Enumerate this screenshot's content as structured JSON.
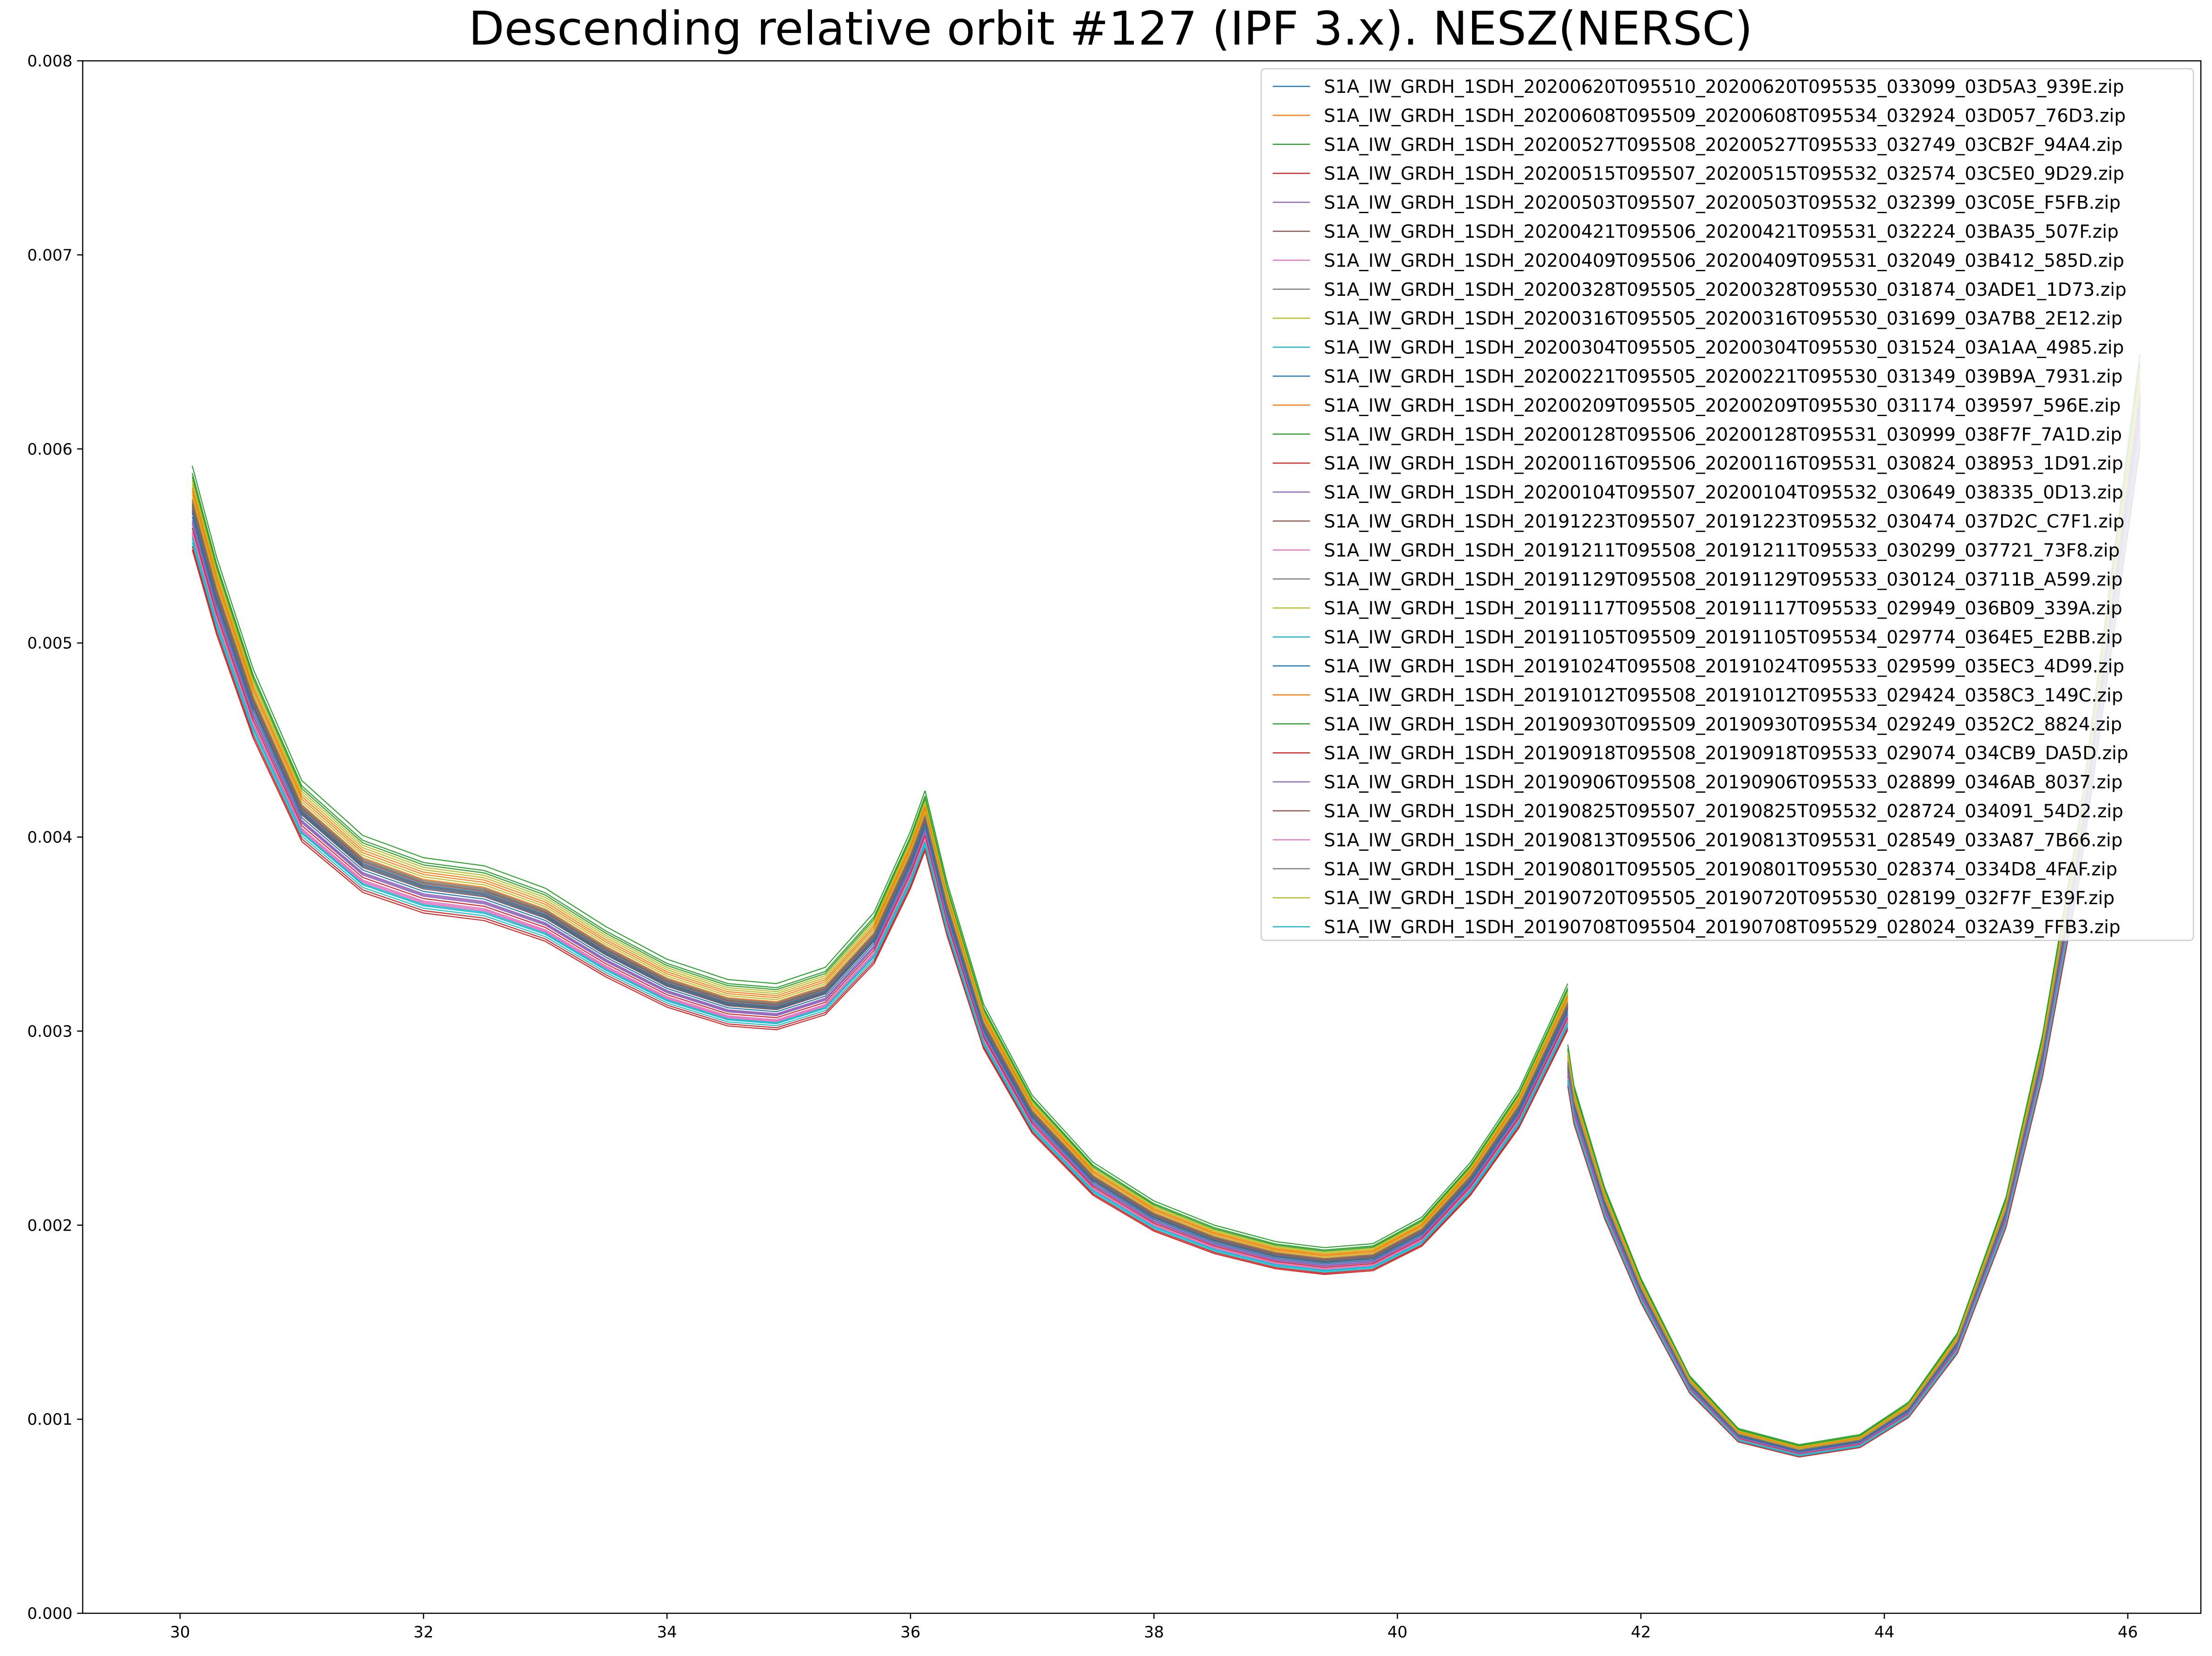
{
  "chart_data": {
    "type": "line",
    "title": "Descending relative orbit #127 (IPF 3.x). NESZ(NERSC)",
    "xlabel": "",
    "ylabel": "",
    "xlim": [
      29.2,
      46.6
    ],
    "ylim": [
      0,
      0.008
    ],
    "xticks": [
      30,
      32,
      34,
      36,
      38,
      40,
      42,
      44,
      46
    ],
    "yticks": [
      0,
      0.001,
      0.002,
      0.003,
      0.004,
      0.005,
      0.006,
      0.007,
      0.008
    ],
    "ytick_labels": [
      "0.000",
      "0.001",
      "0.002",
      "0.003",
      "0.004",
      "0.005",
      "0.006",
      "0.007",
      "0.008"
    ],
    "grid": false,
    "legend_position": "upper right",
    "base_curve": {
      "segments": [
        {
          "x": [
            30.1,
            30.3,
            30.6,
            31.0,
            31.5,
            32.0,
            32.5,
            33.0,
            33.5,
            34.0,
            34.5,
            34.9,
            35.3,
            35.7,
            36.0,
            36.12
          ],
          "y": [
            0.00565,
            0.0052,
            0.00465,
            0.0041,
            0.00383,
            0.00372,
            0.00368,
            0.00357,
            0.00338,
            0.00322,
            0.00312,
            0.0031,
            0.00318,
            0.00345,
            0.00385,
            0.00405
          ]
        },
        {
          "x": [
            36.12,
            36.3,
            36.6,
            37.0,
            37.5,
            38.0,
            38.5,
            39.0,
            39.4,
            39.8,
            40.2,
            40.6,
            41.0,
            41.4
          ],
          "y": [
            0.00405,
            0.0036,
            0.003,
            0.00255,
            0.00222,
            0.00203,
            0.00191,
            0.00183,
            0.0018,
            0.00182,
            0.00195,
            0.00222,
            0.00258,
            0.0031
          ]
        },
        {
          "x": [
            41.4,
            41.45,
            41.7,
            42.0,
            42.4,
            42.8,
            43.3,
            43.8,
            44.2,
            44.6,
            45.0,
            45.3,
            45.6,
            46.1
          ],
          "y": [
            0.0028,
            0.0026,
            0.0021,
            0.00165,
            0.00117,
            0.00091,
            0.00083,
            0.00088,
            0.00104,
            0.00138,
            0.00205,
            0.00285,
            0.0039,
            0.0062
          ]
        }
      ]
    },
    "series": [
      {
        "name": "S1A_IW_GRDH_1SDH_20200620T095510_20200620T095535_033099_03D5A3_939E.zip",
        "color": "#1f77b4",
        "offset": 2.5e-05
      },
      {
        "name": "S1A_IW_GRDH_1SDH_20200608T095509_20200608T095534_032924_03D057_76D3.zip",
        "color": "#ff7f0e",
        "offset": 7e-05
      },
      {
        "name": "S1A_IW_GRDH_1SDH_20200527T095508_20200527T095533_032749_03CB2F_94A4.zip",
        "color": "#2ca02c",
        "offset": 0.00014
      },
      {
        "name": "S1A_IW_GRDH_1SDH_20200515T095507_20200515T095532_032574_03C5E0_9D29.zip",
        "color": "#d62728",
        "offset": -8e-05
      },
      {
        "name": "S1A_IW_GRDH_1SDH_20200503T095507_20200503T095532_032399_03C05E_F5FB.zip",
        "color": "#9467bd",
        "offset": -2e-05
      },
      {
        "name": "S1A_IW_GRDH_1SDH_20200421T095506_20200421T095531_032224_03BA35_507F.zip",
        "color": "#8c564b",
        "offset": 1e-05
      },
      {
        "name": "S1A_IW_GRDH_1SDH_20200409T095506_20200409T095531_032049_03B412_585D.zip",
        "color": "#e377c2",
        "offset": -4e-05
      },
      {
        "name": "S1A_IW_GRDH_1SDH_20200328T095505_20200328T095530_031874_03ADE1_1D73.zip",
        "color": "#7f7f7f",
        "offset": 3e-05
      },
      {
        "name": "S1A_IW_GRDH_1SDH_20200316T095505_20200316T095530_031699_03A7B8_2E12.zip",
        "color": "#bcbd22",
        "offset": 9e-05
      },
      {
        "name": "S1A_IW_GRDH_1SDH_20200304T095505_20200304T095530_031524_03A1AA_4985.zip",
        "color": "#17becf",
        "offset": -6e-05
      },
      {
        "name": "S1A_IW_GRDH_1SDH_20200221T095505_20200221T095530_031349_039B9A_7931.zip",
        "color": "#1f77b4",
        "offset": 0.0
      },
      {
        "name": "S1A_IW_GRDH_1SDH_20200209T095505_20200209T095530_031174_039597_596E.zip",
        "color": "#ff7f0e",
        "offset": 5e-05
      },
      {
        "name": "S1A_IW_GRDH_1SDH_20200128T095506_20200128T095531_030999_038F7F_7A1D.zip",
        "color": "#2ca02c",
        "offset": 0.00011
      },
      {
        "name": "S1A_IW_GRDH_1SDH_20200116T095506_20200116T095531_030824_038953_1D91.zip",
        "color": "#d62728",
        "offset": -3e-05
      },
      {
        "name": "S1A_IW_GRDH_1SDH_20200104T095507_20200104T095532_030649_038335_0D13.zip",
        "color": "#9467bd",
        "offset": -1e-05
      },
      {
        "name": "S1A_IW_GRDH_1SDH_20191223T095507_20191223T095532_030474_037D2C_C7F1.zip",
        "color": "#8c564b",
        "offset": 2e-05
      },
      {
        "name": "S1A_IW_GRDH_1SDH_20191211T095508_20191211T095533_030299_037721_73F8.zip",
        "color": "#e377c2",
        "offset": -5e-05
      },
      {
        "name": "S1A_IW_GRDH_1SDH_20191129T095508_20191129T095533_030124_03711B_A599.zip",
        "color": "#7f7f7f",
        "offset": 4e-05
      },
      {
        "name": "S1A_IW_GRDH_1SDH_20191117T095508_20191117T095533_029949_036B09_339A.zip",
        "color": "#bcbd22",
        "offset": 6e-05
      },
      {
        "name": "S1A_IW_GRDH_1SDH_20191105T095509_20191105T095534_029774_0364E5_E2BB.zip",
        "color": "#17becf",
        "offset": -7e-05
      },
      {
        "name": "S1A_IW_GRDH_1SDH_20191024T095508_20191024T095533_029599_035EC3_4D99.zip",
        "color": "#1f77b4",
        "offset": 1.5e-05
      },
      {
        "name": "S1A_IW_GRDH_1SDH_20191012T095508_20191012T095533_029424_0358C3_149C.zip",
        "color": "#ff7f0e",
        "offset": 8e-05
      },
      {
        "name": "S1A_IW_GRDH_1SDH_20190930T095509_20190930T095534_029249_0352C2_8824.zip",
        "color": "#2ca02c",
        "offset": 0.00012
      },
      {
        "name": "S1A_IW_GRDH_1SDH_20190918T095508_20190918T095533_029074_034CB9_DA5D.zip",
        "color": "#d62728",
        "offset": -9e-05
      },
      {
        "name": "S1A_IW_GRDH_1SDH_20190906T095508_20190906T095533_028899_0346AB_8037.zip",
        "color": "#9467bd",
        "offset": -1.5e-05
      },
      {
        "name": "S1A_IW_GRDH_1SDH_20190825T095507_20190825T095532_028724_034091_54D2.zip",
        "color": "#8c564b",
        "offset": 3.5e-05
      },
      {
        "name": "S1A_IW_GRDH_1SDH_20190813T095506_20190813T095531_028549_033A87_7B66.zip",
        "color": "#e377c2",
        "offset": -4.5e-05
      },
      {
        "name": "S1A_IW_GRDH_1SDH_20190801T095505_20190801T095530_028374_0334D8_4FAF.zip",
        "color": "#7f7f7f",
        "offset": 4.5e-05
      },
      {
        "name": "S1A_IW_GRDH_1SDH_20190720T095505_20190720T095530_028199_032F7F_E39F.zip",
        "color": "#bcbd22",
        "offset": 0.0001
      },
      {
        "name": "S1A_IW_GRDH_1SDH_20190708T095504_20190708T095529_028024_032A39_FFB3.zip",
        "color": "#17becf",
        "offset": -5.5e-05
      }
    ]
  }
}
